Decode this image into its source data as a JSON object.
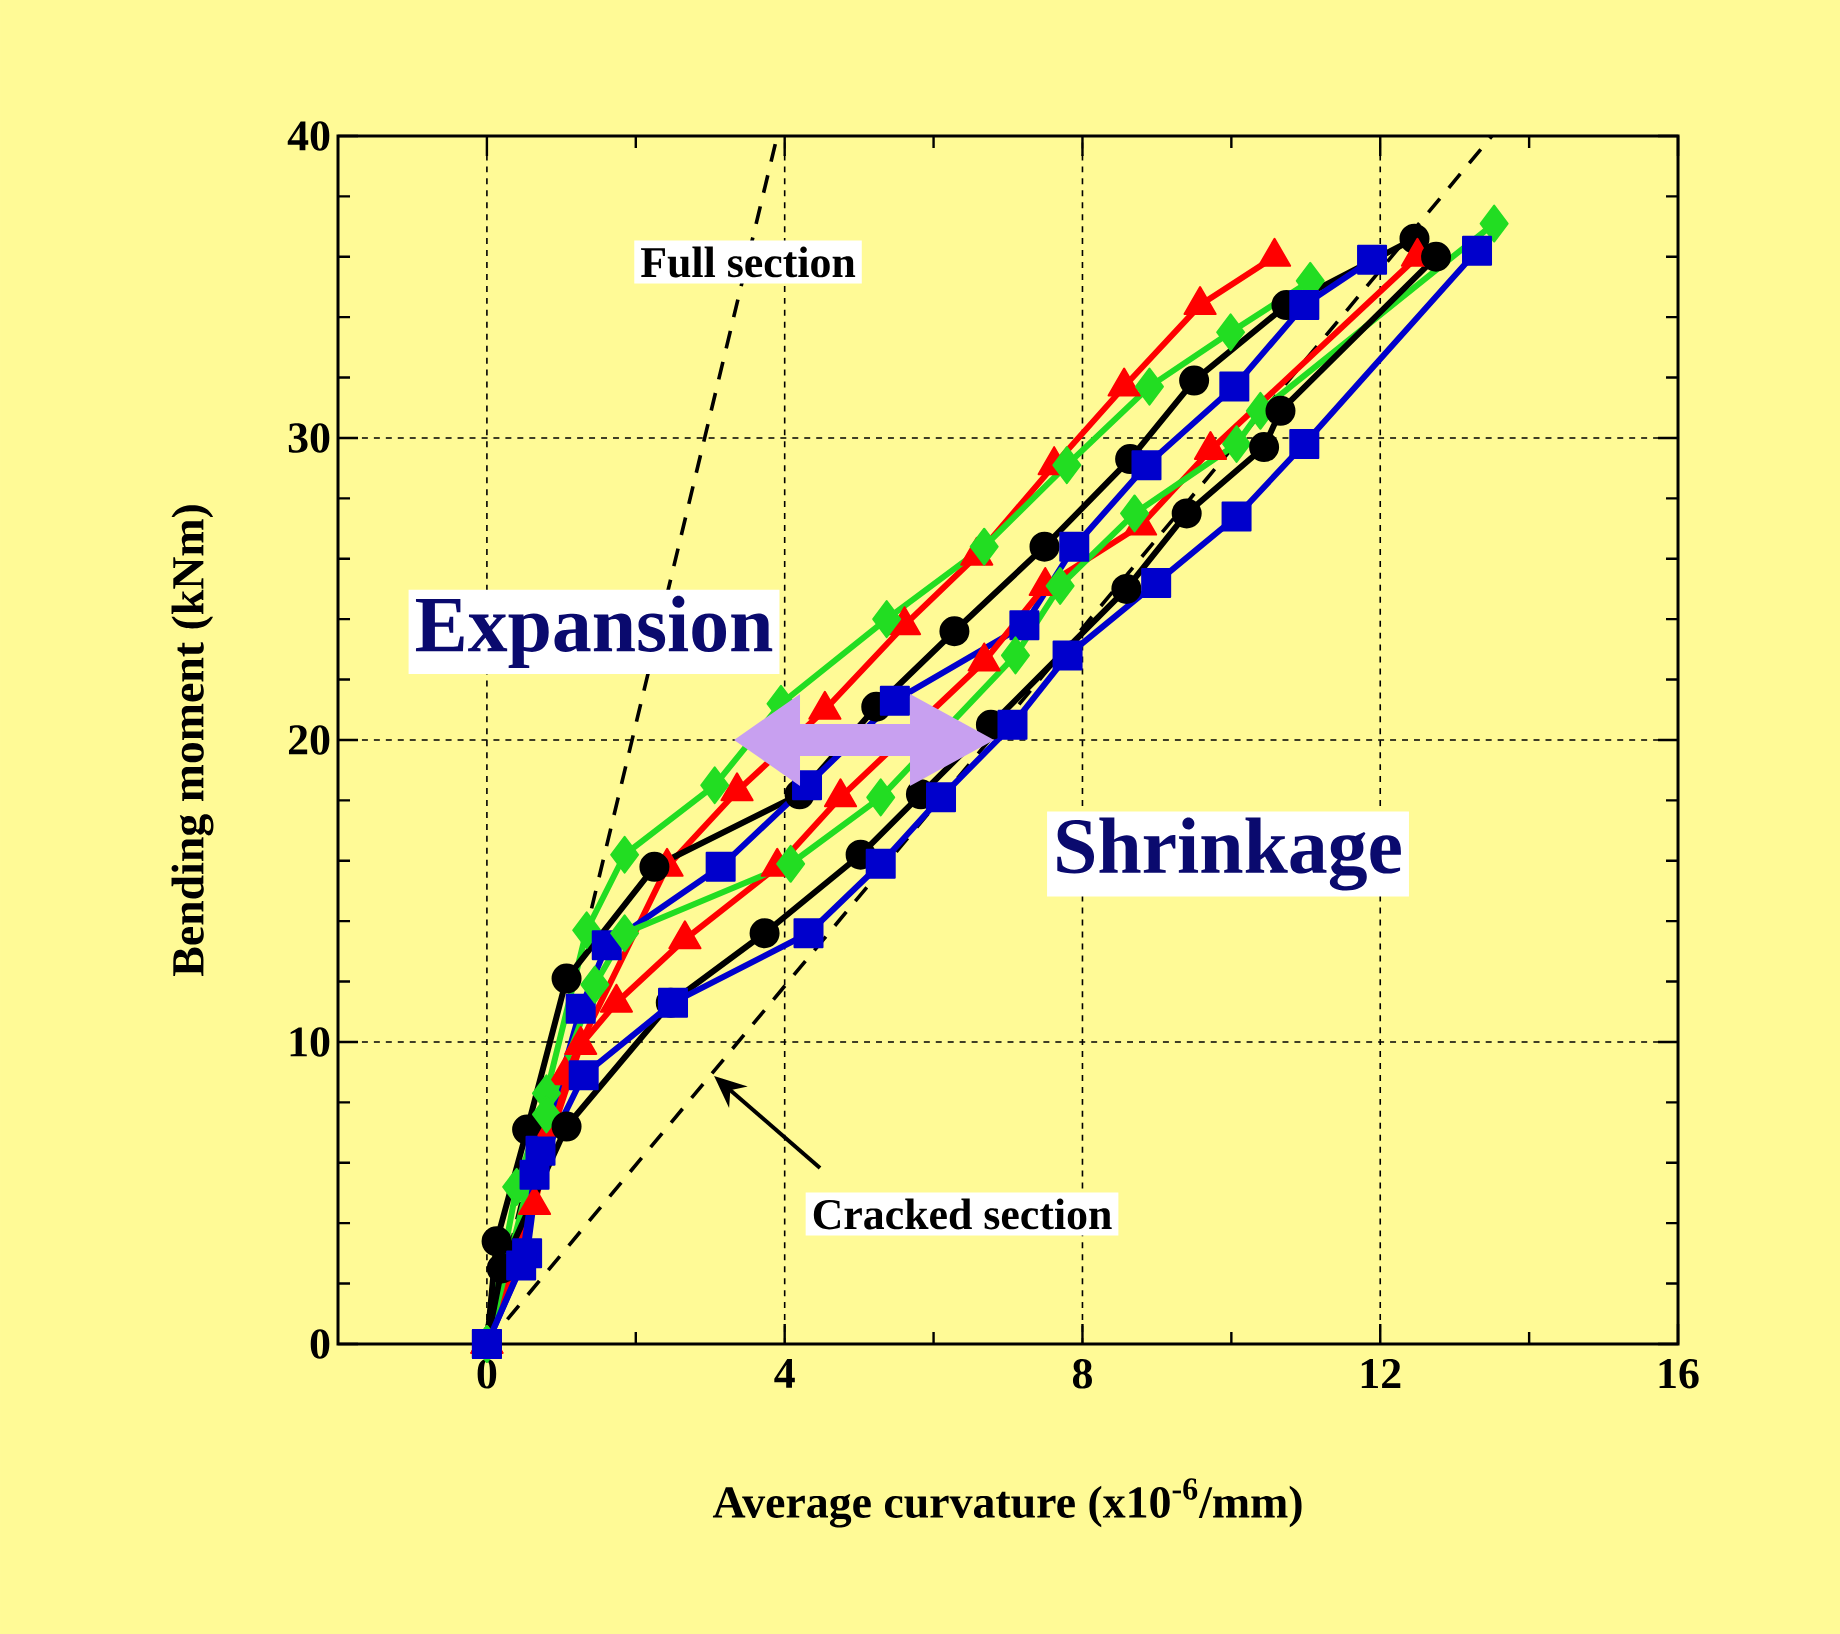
{
  "chart_data": {
    "type": "line",
    "xlabel": "Average curvature (x10$^{-6}$/mm)",
    "ylabel": "Bending moment (kNm)",
    "xlim": [
      -2,
      16
    ],
    "ylim": [
      0,
      40
    ],
    "xticks": [
      0,
      4,
      8,
      12,
      16
    ],
    "yticks": [
      0,
      10,
      20,
      30,
      40
    ],
    "grid": true,
    "line_style": "solid",
    "series": [
      {
        "color": "#000000",
        "type": "line",
        "line_style": "dashed",
        "x": [
          0,
          3.9
        ],
        "values": [
          0,
          40
        ]
      },
      {
        "color": "#000000",
        "type": "line",
        "line_style": "dashed",
        "x": [
          0,
          13.5
        ],
        "values": [
          0,
          40
        ]
      },
      {
        "color": "#ff0000",
        "marker": "triangle",
        "x": [
          0,
          0.64,
          1.05,
          2.42,
          3.36,
          4.54,
          5.61,
          6.58,
          7.62,
          8.56,
          9.58,
          10.58
        ],
        "values": [
          0,
          4.6,
          8.9,
          15.8,
          18.3,
          21.0,
          23.8,
          26.1,
          29.1,
          31.7,
          34.4,
          36.0
        ]
      },
      {
        "color": "#22dd22",
        "marker": "diamond",
        "x": [
          0,
          0.4,
          0.8,
          1.34,
          1.85,
          3.06,
          3.95,
          5.37,
          6.68,
          7.79,
          8.9,
          9.99,
          11.06
        ],
        "values": [
          0,
          5.2,
          8.3,
          13.7,
          16.2,
          18.5,
          21.2,
          24.0,
          26.4,
          29.1,
          31.7,
          33.5,
          35.2
        ]
      },
      {
        "color": "#000000",
        "marker": "circle",
        "x": [
          0,
          0.13,
          0.54,
          1.07,
          2.25,
          4.2,
          5.23,
          6.28,
          7.49,
          8.64,
          9.5,
          10.74,
          12.46
        ],
        "values": [
          0,
          3.4,
          7.1,
          12.1,
          15.8,
          18.2,
          21.1,
          23.6,
          26.4,
          29.3,
          31.9,
          34.4,
          36.6
        ]
      },
      {
        "color": "#0000cc",
        "marker": "square",
        "x": [
          0,
          0.54,
          0.72,
          1.26,
          1.61,
          3.14,
          4.3,
          5.48,
          7.22,
          7.89,
          8.86,
          10.04,
          10.98,
          11.89
        ],
        "values": [
          0,
          3.0,
          6.4,
          11.1,
          13.2,
          15.8,
          18.5,
          21.3,
          23.8,
          26.4,
          29.1,
          31.7,
          34.4,
          35.9
        ]
      },
      {
        "color": "#ff0000",
        "marker": "triangle",
        "x": [
          0,
          0.9,
          1.26,
          1.74,
          2.66,
          3.9,
          4.75,
          6.68,
          7.5,
          8.78,
          9.72,
          12.5
        ],
        "values": [
          0,
          7.2,
          9.9,
          11.3,
          13.4,
          15.8,
          18.1,
          22.6,
          25.1,
          27.1,
          29.6,
          36.0
        ]
      },
      {
        "color": "#22dd22",
        "marker": "diamond",
        "x": [
          0,
          0.8,
          1.45,
          1.85,
          4.08,
          5.29,
          7.1,
          7.7,
          8.7,
          10.07,
          10.39,
          13.53
        ],
        "values": [
          0,
          7.6,
          11.9,
          13.6,
          15.9,
          18.1,
          22.8,
          25.1,
          27.5,
          29.8,
          30.9,
          37.1
        ]
      },
      {
        "color": "#000000",
        "marker": "circle",
        "x": [
          0,
          0.2,
          1.07,
          2.47,
          3.73,
          5.02,
          5.83,
          6.77,
          8.59,
          9.4,
          10.44,
          10.66,
          12.75
        ],
        "values": [
          0,
          2.5,
          7.2,
          11.3,
          13.6,
          16.2,
          18.2,
          20.5,
          25.0,
          27.5,
          29.7,
          30.9,
          36.0
        ]
      },
      {
        "color": "#0000cc",
        "marker": "square",
        "x": [
          0,
          0.46,
          0.64,
          1.3,
          2.5,
          4.32,
          5.29,
          6.1,
          7.06,
          7.8,
          8.99,
          10.07,
          10.98,
          13.3
        ],
        "values": [
          0,
          2.6,
          5.6,
          8.9,
          11.3,
          13.6,
          15.9,
          18.1,
          20.5,
          22.8,
          25.2,
          27.4,
          29.8,
          36.2
        ]
      }
    ],
    "annotations": [
      "Full section",
      "Cracked section",
      "Expansion",
      "Shrinkage"
    ]
  }
}
